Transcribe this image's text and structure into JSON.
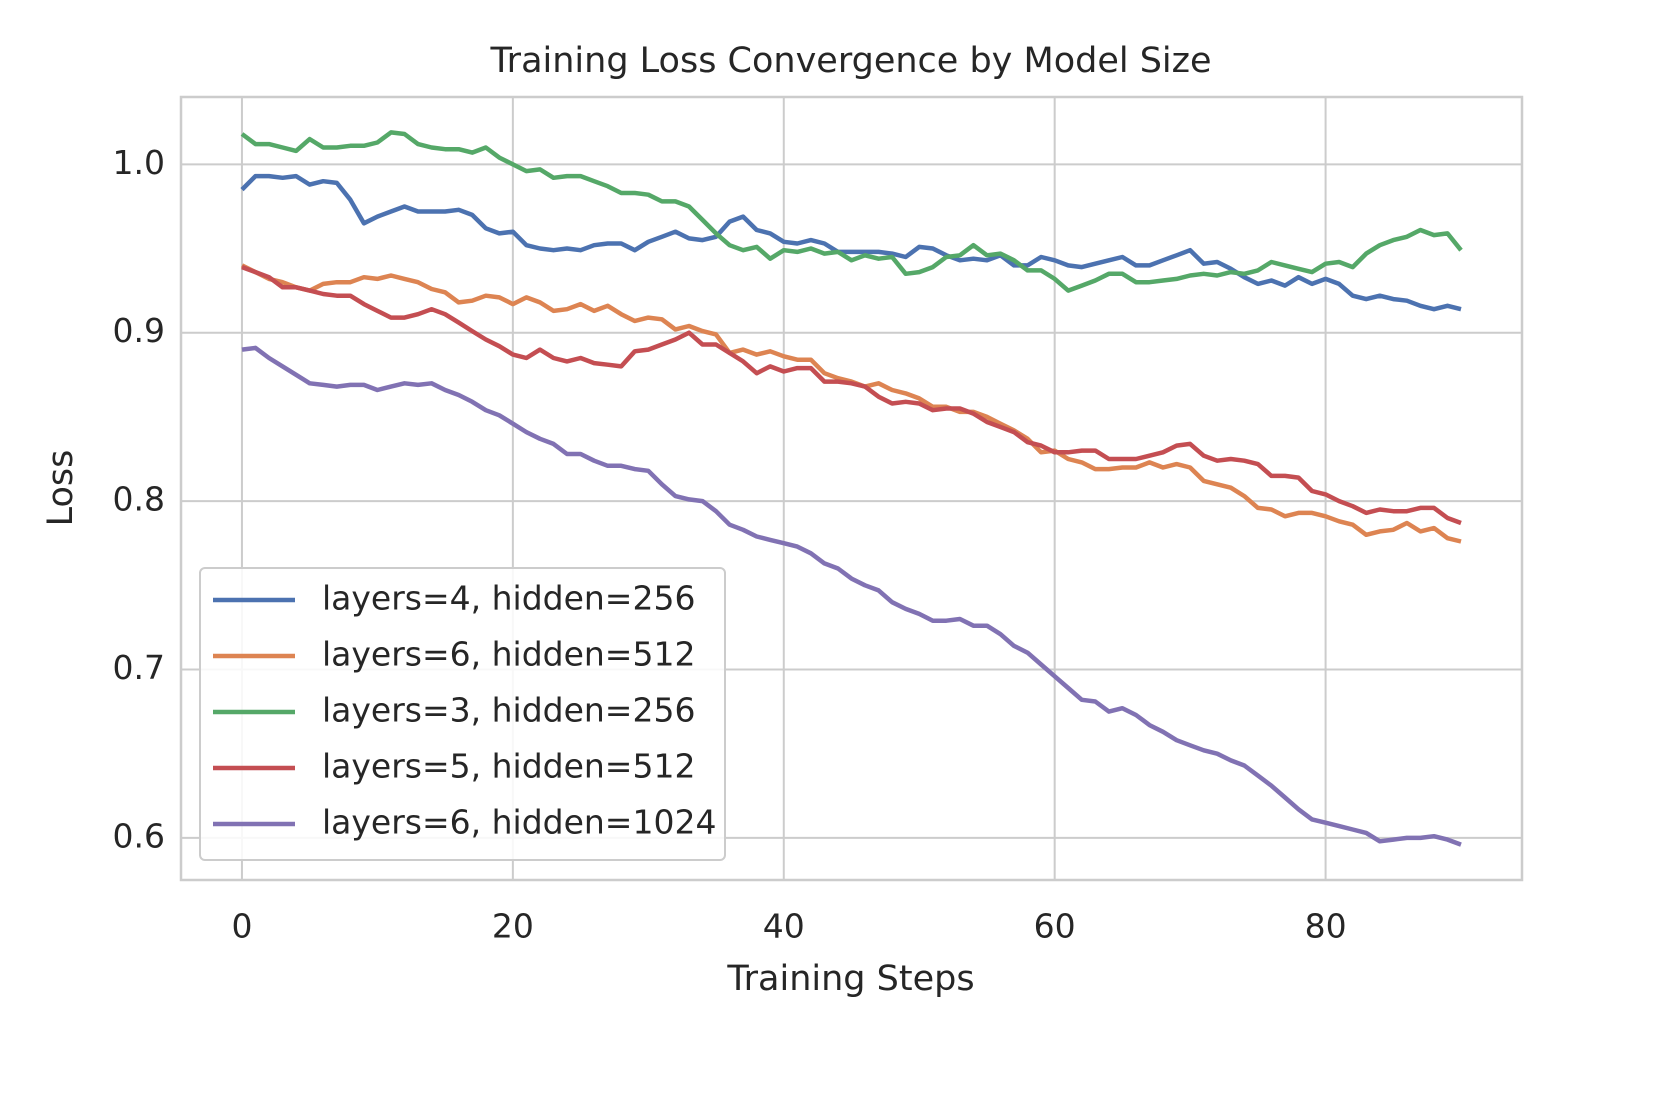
{
  "chart_data": {
    "type": "line",
    "title": "Training Loss Convergence by Model Size",
    "xlabel": "Training Steps",
    "ylabel": "Loss",
    "x": [
      0,
      1,
      2,
      3,
      4,
      5,
      6,
      7,
      8,
      9,
      10,
      11,
      12,
      13,
      14,
      15,
      16,
      17,
      18,
      19,
      20,
      21,
      22,
      23,
      24,
      25,
      26,
      27,
      28,
      29,
      30,
      31,
      32,
      33,
      34,
      35,
      36,
      37,
      38,
      39,
      40,
      41,
      42,
      43,
      44,
      45,
      46,
      47,
      48,
      49,
      50,
      51,
      52,
      53,
      54,
      55,
      56,
      57,
      58,
      59,
      60,
      61,
      62,
      63,
      64,
      65,
      66,
      67,
      68,
      69,
      70,
      71,
      72,
      73,
      74,
      75,
      76,
      77,
      78,
      79,
      80,
      81,
      82,
      83,
      84,
      85,
      86,
      87,
      88,
      89,
      90
    ],
    "series": [
      {
        "name": "layers=4, hidden=256",
        "color": "#4c72b0",
        "values": [
          0.985,
          0.993,
          0.993,
          0.992,
          0.993,
          0.988,
          0.99,
          0.989,
          0.979,
          0.965,
          0.969,
          0.972,
          0.975,
          0.972,
          0.972,
          0.972,
          0.973,
          0.97,
          0.962,
          0.959,
          0.96,
          0.952,
          0.95,
          0.949,
          0.95,
          0.949,
          0.952,
          0.953,
          0.953,
          0.949,
          0.954,
          0.957,
          0.96,
          0.956,
          0.955,
          0.957,
          0.966,
          0.969,
          0.961,
          0.959,
          0.954,
          0.953,
          0.955,
          0.953,
          0.948,
          0.948,
          0.948,
          0.948,
          0.947,
          0.945,
          0.951,
          0.95,
          0.946,
          0.943,
          0.944,
          0.943,
          0.946,
          0.94,
          0.94,
          0.945,
          0.943,
          0.94,
          0.939,
          0.941,
          0.943,
          0.945,
          0.94,
          0.94,
          0.943,
          0.946,
          0.949,
          0.941,
          0.942,
          0.938,
          0.933,
          0.929,
          0.931,
          0.928,
          0.933,
          0.929,
          0.932,
          0.929,
          0.922,
          0.92,
          0.922,
          0.92,
          0.919,
          0.916,
          0.914,
          0.916,
          0.914
        ]
      },
      {
        "name": "layers=6, hidden=512",
        "color": "#dd8452",
        "values": [
          0.94,
          0.936,
          0.932,
          0.93,
          0.927,
          0.925,
          0.929,
          0.93,
          0.93,
          0.933,
          0.932,
          0.934,
          0.932,
          0.93,
          0.926,
          0.924,
          0.918,
          0.919,
          0.922,
          0.921,
          0.917,
          0.921,
          0.918,
          0.913,
          0.914,
          0.917,
          0.913,
          0.916,
          0.911,
          0.907,
          0.909,
          0.908,
          0.902,
          0.904,
          0.901,
          0.899,
          0.888,
          0.89,
          0.887,
          0.889,
          0.886,
          0.884,
          0.884,
          0.876,
          0.873,
          0.871,
          0.868,
          0.87,
          0.866,
          0.864,
          0.861,
          0.856,
          0.856,
          0.853,
          0.853,
          0.85,
          0.846,
          0.842,
          0.837,
          0.829,
          0.83,
          0.825,
          0.823,
          0.819,
          0.819,
          0.82,
          0.82,
          0.823,
          0.82,
          0.822,
          0.82,
          0.812,
          0.81,
          0.808,
          0.803,
          0.796,
          0.795,
          0.791,
          0.793,
          0.793,
          0.791,
          0.788,
          0.786,
          0.78,
          0.782,
          0.783,
          0.787,
          0.782,
          0.784,
          0.778,
          0.776
        ]
      },
      {
        "name": "layers=3, hidden=256",
        "color": "#55a868",
        "values": [
          1.018,
          1.012,
          1.012,
          1.01,
          1.008,
          1.015,
          1.01,
          1.01,
          1.011,
          1.011,
          1.013,
          1.019,
          1.018,
          1.012,
          1.01,
          1.009,
          1.009,
          1.007,
          1.01,
          1.004,
          1.0,
          0.996,
          0.997,
          0.992,
          0.993,
          0.993,
          0.99,
          0.987,
          0.983,
          0.983,
          0.982,
          0.978,
          0.978,
          0.975,
          0.967,
          0.959,
          0.952,
          0.949,
          0.951,
          0.944,
          0.949,
          0.948,
          0.95,
          0.947,
          0.948,
          0.943,
          0.946,
          0.944,
          0.945,
          0.935,
          0.936,
          0.939,
          0.945,
          0.946,
          0.952,
          0.946,
          0.947,
          0.943,
          0.937,
          0.937,
          0.932,
          0.925,
          0.928,
          0.931,
          0.935,
          0.935,
          0.93,
          0.93,
          0.931,
          0.932,
          0.934,
          0.935,
          0.934,
          0.936,
          0.935,
          0.937,
          0.942,
          0.94,
          0.938,
          0.936,
          0.941,
          0.942,
          0.939,
          0.947,
          0.952,
          0.955,
          0.957,
          0.961,
          0.958,
          0.959,
          0.949
        ]
      },
      {
        "name": "layers=5, hidden=512",
        "color": "#c44e52",
        "values": [
          0.939,
          0.936,
          0.933,
          0.927,
          0.927,
          0.925,
          0.923,
          0.922,
          0.922,
          0.917,
          0.913,
          0.909,
          0.909,
          0.911,
          0.914,
          0.911,
          0.906,
          0.901,
          0.896,
          0.892,
          0.887,
          0.885,
          0.89,
          0.885,
          0.883,
          0.885,
          0.882,
          0.881,
          0.88,
          0.889,
          0.89,
          0.893,
          0.896,
          0.9,
          0.893,
          0.893,
          0.888,
          0.883,
          0.876,
          0.88,
          0.877,
          0.879,
          0.879,
          0.871,
          0.871,
          0.87,
          0.868,
          0.862,
          0.858,
          0.859,
          0.858,
          0.854,
          0.855,
          0.855,
          0.852,
          0.847,
          0.844,
          0.841,
          0.835,
          0.833,
          0.829,
          0.829,
          0.83,
          0.83,
          0.825,
          0.825,
          0.825,
          0.827,
          0.829,
          0.833,
          0.834,
          0.827,
          0.824,
          0.825,
          0.824,
          0.822,
          0.815,
          0.815,
          0.814,
          0.806,
          0.804,
          0.8,
          0.797,
          0.793,
          0.795,
          0.794,
          0.794,
          0.796,
          0.796,
          0.79,
          0.787
        ]
      },
      {
        "name": "layers=6, hidden=1024",
        "color": "#8172b3",
        "values": [
          0.89,
          0.891,
          0.885,
          0.88,
          0.875,
          0.87,
          0.869,
          0.868,
          0.869,
          0.869,
          0.866,
          0.868,
          0.87,
          0.869,
          0.87,
          0.866,
          0.863,
          0.859,
          0.854,
          0.851,
          0.846,
          0.841,
          0.837,
          0.834,
          0.828,
          0.828,
          0.824,
          0.821,
          0.821,
          0.819,
          0.818,
          0.81,
          0.803,
          0.801,
          0.8,
          0.794,
          0.786,
          0.783,
          0.779,
          0.777,
          0.775,
          0.773,
          0.769,
          0.763,
          0.76,
          0.754,
          0.75,
          0.747,
          0.74,
          0.736,
          0.733,
          0.729,
          0.729,
          0.73,
          0.726,
          0.726,
          0.721,
          0.714,
          0.71,
          0.703,
          0.696,
          0.689,
          0.682,
          0.681,
          0.675,
          0.677,
          0.673,
          0.667,
          0.663,
          0.658,
          0.655,
          0.652,
          0.65,
          0.646,
          0.643,
          0.637,
          0.631,
          0.624,
          0.617,
          0.611,
          0.609,
          0.607,
          0.605,
          0.603,
          0.598,
          0.599,
          0.6,
          0.6,
          0.601,
          0.599,
          0.596
        ]
      }
    ],
    "xlim": [
      -4.5,
      94.5
    ],
    "ylim": [
      0.575,
      1.04
    ],
    "xticks": [
      0,
      20,
      40,
      60,
      80
    ],
    "yticks": [
      0.6,
      0.7,
      0.8,
      0.9,
      {
        "value": 1,
        "label": "1.0"
      }
    ],
    "grid": true,
    "legend": "lower left"
  }
}
